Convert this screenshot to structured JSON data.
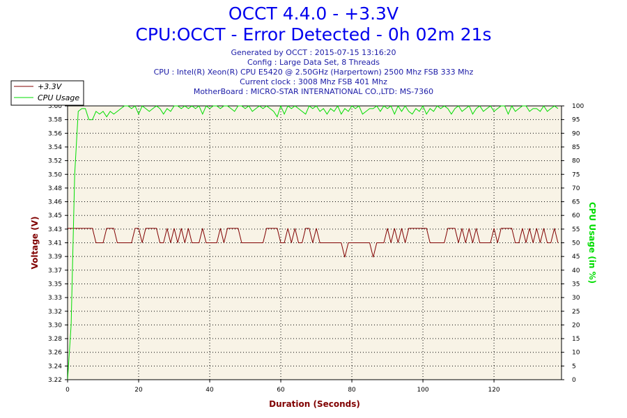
{
  "header": {
    "title": "OCCT 4.4.0 - +3.3V",
    "subtitle": "CPU:OCCT - Error Detected - 0h 02m 21s",
    "info_lines": [
      "Generated by OCCT : 2015-07-15 13:16:20",
      "Config : Large Data Set, 8 Threads",
      "CPU : Intel(R) Xeon(R) CPU E5420 @ 2.50GHz (Harpertown) 2500 Mhz FSB 333 Mhz",
      "Current clock : 3008 Mhz FSB 401 Mhz",
      "MotherBoard : MICRO-STAR INTERNATIONAL CO.,LTD: MS-7360"
    ]
  },
  "colors": {
    "voltage": "#800000",
    "cpu": "#00dd00",
    "plot_bg": "#f8f3e6",
    "title": "#0000ee",
    "info": "#1a1aa6"
  },
  "chart_data": {
    "type": "line",
    "title": "OCCT 4.4.0 - +3.3V",
    "xlabel": "Duration (Seconds)",
    "ylabel": "Voltage (V)",
    "y2label": "CPU Usage (in %)",
    "xlim": [
      0,
      139
    ],
    "ylim": [
      3.22,
      3.6
    ],
    "y2lim": [
      0,
      100
    ],
    "x_ticks": [
      "0",
      "20",
      "40",
      "60",
      "80",
      "100",
      "120"
    ],
    "y_ticks": [
      "3.22",
      "3.24",
      "3.26",
      "3.28",
      "3.30",
      "3.32",
      "3.33",
      "3.35",
      "3.37",
      "3.39",
      "3.41",
      "3.43",
      "3.45",
      "3.46",
      "3.48",
      "3.50",
      "3.52",
      "3.54",
      "3.56",
      "3.58",
      "3.60"
    ],
    "y2_ticks": [
      "0",
      "5",
      "10",
      "15",
      "20",
      "25",
      "30",
      "35",
      "40",
      "45",
      "50",
      "55",
      "60",
      "65",
      "70",
      "75",
      "80",
      "85",
      "90",
      "95",
      "100"
    ],
    "grid": true,
    "legend_position": "top-left",
    "series": [
      {
        "name": "+3.3V",
        "axis": "left",
        "x": [
          0,
          1,
          2,
          3,
          4,
          5,
          6,
          7,
          8,
          9,
          10,
          11,
          12,
          13,
          14,
          15,
          16,
          17,
          18,
          19,
          20,
          21,
          22,
          23,
          24,
          25,
          26,
          27,
          28,
          29,
          30,
          31,
          32,
          33,
          34,
          35,
          36,
          37,
          38,
          39,
          40,
          41,
          42,
          43,
          44,
          45,
          46,
          47,
          48,
          49,
          50,
          51,
          52,
          53,
          54,
          55,
          56,
          57,
          58,
          59,
          60,
          61,
          62,
          63,
          64,
          65,
          66,
          67,
          68,
          69,
          70,
          71,
          72,
          73,
          74,
          75,
          76,
          77,
          78,
          79,
          80,
          81,
          82,
          83,
          84,
          85,
          86,
          87,
          88,
          89,
          90,
          91,
          92,
          93,
          94,
          95,
          96,
          97,
          98,
          99,
          100,
          101,
          102,
          103,
          104,
          105,
          106,
          107,
          108,
          109,
          110,
          111,
          112,
          113,
          114,
          115,
          116,
          117,
          118,
          119,
          120,
          121,
          122,
          123,
          124,
          125,
          126,
          127,
          128,
          129,
          130,
          131,
          132,
          133,
          134,
          135,
          136,
          137,
          138
        ],
        "values": [
          3.43,
          3.43,
          3.43,
          3.43,
          3.43,
          3.43,
          3.43,
          3.43,
          3.41,
          3.41,
          3.41,
          3.43,
          3.43,
          3.43,
          3.41,
          3.41,
          3.41,
          3.41,
          3.41,
          3.43,
          3.43,
          3.41,
          3.43,
          3.43,
          3.43,
          3.43,
          3.41,
          3.41,
          3.43,
          3.41,
          3.43,
          3.41,
          3.43,
          3.41,
          3.43,
          3.41,
          3.41,
          3.41,
          3.43,
          3.41,
          3.41,
          3.41,
          3.41,
          3.43,
          3.41,
          3.43,
          3.43,
          3.43,
          3.43,
          3.41,
          3.41,
          3.41,
          3.41,
          3.41,
          3.41,
          3.41,
          3.43,
          3.43,
          3.43,
          3.43,
          3.41,
          3.41,
          3.43,
          3.41,
          3.43,
          3.41,
          3.41,
          3.43,
          3.43,
          3.41,
          3.43,
          3.41,
          3.41,
          3.41,
          3.41,
          3.41,
          3.41,
          3.41,
          3.39,
          3.41,
          3.41,
          3.41,
          3.41,
          3.41,
          3.41,
          3.41,
          3.39,
          3.41,
          3.41,
          3.41,
          3.43,
          3.41,
          3.43,
          3.41,
          3.43,
          3.41,
          3.43,
          3.43,
          3.43,
          3.43,
          3.43,
          3.43,
          3.41,
          3.41,
          3.41,
          3.41,
          3.41,
          3.43,
          3.43,
          3.43,
          3.41,
          3.43,
          3.41,
          3.43,
          3.41,
          3.43,
          3.41,
          3.41,
          3.41,
          3.41,
          3.43,
          3.41,
          3.43,
          3.43,
          3.43,
          3.43,
          3.41,
          3.41,
          3.43,
          3.41,
          3.43,
          3.41,
          3.43,
          3.41,
          3.43,
          3.41,
          3.41,
          3.43,
          3.41
        ]
      },
      {
        "name": "CPU Usage",
        "axis": "right",
        "x": [
          0,
          1,
          2,
          3,
          4,
          5,
          6,
          7,
          8,
          9,
          10,
          11,
          12,
          13,
          14,
          15,
          16,
          17,
          18,
          19,
          20,
          21,
          22,
          23,
          24,
          25,
          26,
          27,
          28,
          29,
          30,
          31,
          32,
          33,
          34,
          35,
          36,
          37,
          38,
          39,
          40,
          41,
          42,
          43,
          44,
          45,
          46,
          47,
          48,
          49,
          50,
          51,
          52,
          53,
          54,
          55,
          56,
          57,
          58,
          59,
          60,
          61,
          62,
          63,
          64,
          65,
          66,
          67,
          68,
          69,
          70,
          71,
          72,
          73,
          74,
          75,
          76,
          77,
          78,
          79,
          80,
          81,
          82,
          83,
          84,
          85,
          86,
          87,
          88,
          89,
          90,
          91,
          92,
          93,
          94,
          95,
          96,
          97,
          98,
          99,
          100,
          101,
          102,
          103,
          104,
          105,
          106,
          107,
          108,
          109,
          110,
          111,
          112,
          113,
          114,
          115,
          116,
          117,
          118,
          119,
          120,
          121,
          122,
          123,
          124,
          125,
          126,
          127,
          128,
          129,
          130,
          131,
          132,
          133,
          134,
          135,
          136,
          137,
          138
        ],
        "values": [
          0,
          20,
          75,
          98,
          99,
          99,
          95,
          95,
          98,
          97,
          98,
          96,
          98,
          97,
          98,
          99,
          100,
          100,
          99,
          100,
          97,
          100,
          99,
          98,
          99,
          100,
          99,
          97,
          99,
          98,
          100,
          100,
          99,
          100,
          99,
          100,
          99,
          100,
          97,
          100,
          99,
          100,
          100,
          99,
          100,
          100,
          99,
          98,
          100,
          100,
          99,
          100,
          98,
          99,
          100,
          99,
          100,
          99,
          98,
          96,
          100,
          97,
          100,
          99,
          100,
          99,
          98,
          97,
          100,
          99,
          100,
          98,
          99,
          97,
          99,
          98,
          100,
          97,
          99,
          98,
          100,
          99,
          100,
          97,
          98,
          99,
          99,
          100,
          98,
          100,
          99,
          100,
          97,
          100,
          98,
          100,
          98,
          97,
          99,
          98,
          100,
          97,
          99,
          98,
          100,
          99,
          100,
          99,
          97,
          99,
          100,
          98,
          99,
          100,
          97,
          99,
          100,
          98,
          99,
          100,
          98,
          99,
          100,
          100,
          97,
          100,
          98,
          99,
          100,
          100,
          98,
          99,
          99,
          98,
          100,
          98,
          99,
          100,
          99
        ]
      }
    ]
  }
}
